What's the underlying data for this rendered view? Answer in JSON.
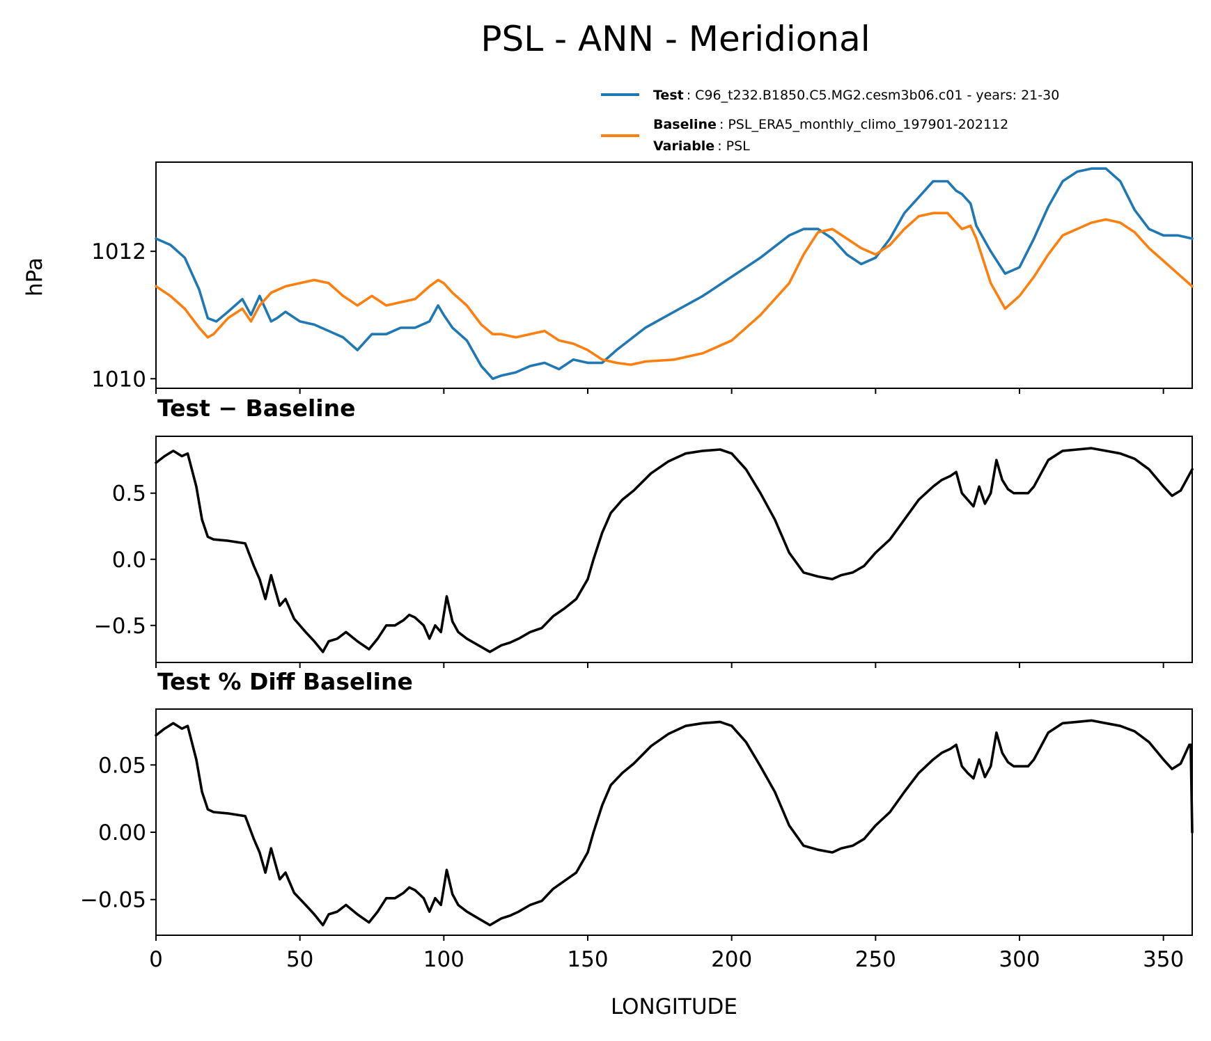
{
  "title": "PSL - ANN - Meridional",
  "legend": [
    {
      "key": "Test",
      "value": "C96_t232.B1850.C5.MG2.cesm3b06.c01 - years: 21-30",
      "color": "#1f77b4"
    },
    {
      "key": "Baseline",
      "value": "PSL_ERA5_monthly_climo_197901-202112",
      "key2": "Variable",
      "value2": "PSL",
      "color": "#ff7f0e"
    }
  ],
  "chart_data": [
    {
      "type": "line",
      "title": "",
      "xlabel": "",
      "ylabel": "hPa",
      "xlim": [
        0,
        360
      ],
      "ylim": [
        1009.85,
        1013.4
      ],
      "yticks": [
        "1010",
        "1012"
      ],
      "series": [
        {
          "name": "Test",
          "color": "#1f77b4",
          "x": [
            0,
            5,
            10,
            15,
            18,
            21,
            25,
            30,
            33,
            36,
            40,
            42,
            45,
            50,
            55,
            60,
            65,
            70,
            75,
            80,
            85,
            90,
            95,
            98,
            100,
            103,
            108,
            113,
            117,
            120,
            125,
            130,
            135,
            140,
            145,
            150,
            155,
            160,
            170,
            180,
            190,
            200,
            210,
            220,
            225,
            230,
            235,
            240,
            245,
            250,
            255,
            260,
            265,
            270,
            275,
            278,
            280,
            283,
            285,
            290,
            295,
            300,
            305,
            310,
            315,
            320,
            325,
            330,
            335,
            340,
            345,
            350,
            355,
            360
          ],
          "y": [
            1012.2,
            1012.1,
            1011.9,
            1011.4,
            1010.95,
            1010.9,
            1011.05,
            1011.25,
            1011.0,
            1011.3,
            1010.9,
            1010.95,
            1011.05,
            1010.9,
            1010.85,
            1010.75,
            1010.65,
            1010.45,
            1010.7,
            1010.7,
            1010.8,
            1010.8,
            1010.9,
            1011.15,
            1011.0,
            1010.8,
            1010.6,
            1010.2,
            1010.0,
            1010.05,
            1010.1,
            1010.2,
            1010.25,
            1010.15,
            1010.3,
            1010.25,
            1010.25,
            1010.45,
            1010.8,
            1011.05,
            1011.3,
            1011.6,
            1011.9,
            1012.25,
            1012.35,
            1012.35,
            1012.2,
            1011.95,
            1011.8,
            1011.9,
            1012.2,
            1012.6,
            1012.85,
            1013.1,
            1013.1,
            1012.95,
            1012.9,
            1012.75,
            1012.4,
            1012.0,
            1011.65,
            1011.75,
            1012.2,
            1012.7,
            1013.1,
            1013.25,
            1013.3,
            1013.3,
            1013.1,
            1012.65,
            1012.35,
            1012.25,
            1012.25,
            1012.2
          ]
        },
        {
          "name": "Baseline",
          "color": "#ff7f0e",
          "x": [
            0,
            5,
            10,
            15,
            18,
            20,
            25,
            30,
            33,
            36,
            40,
            45,
            50,
            55,
            60,
            65,
            70,
            75,
            80,
            85,
            90,
            95,
            98,
            100,
            103,
            108,
            113,
            117,
            120,
            125,
            130,
            135,
            140,
            145,
            150,
            155,
            160,
            165,
            170,
            180,
            190,
            200,
            210,
            220,
            225,
            230,
            235,
            240,
            245,
            250,
            255,
            260,
            265,
            270,
            275,
            278,
            280,
            283,
            285,
            290,
            295,
            300,
            305,
            310,
            315,
            320,
            325,
            330,
            335,
            340,
            345,
            350,
            355,
            360
          ],
          "y": [
            1011.45,
            1011.3,
            1011.1,
            1010.8,
            1010.65,
            1010.7,
            1010.95,
            1011.1,
            1010.9,
            1011.15,
            1011.35,
            1011.45,
            1011.5,
            1011.55,
            1011.5,
            1011.3,
            1011.15,
            1011.3,
            1011.15,
            1011.2,
            1011.25,
            1011.45,
            1011.55,
            1011.5,
            1011.35,
            1011.15,
            1010.85,
            1010.7,
            1010.7,
            1010.65,
            1010.7,
            1010.75,
            1010.6,
            1010.55,
            1010.45,
            1010.3,
            1010.25,
            1010.22,
            1010.27,
            1010.3,
            1010.4,
            1010.6,
            1011.0,
            1011.5,
            1011.95,
            1012.3,
            1012.35,
            1012.2,
            1012.05,
            1011.95,
            1012.1,
            1012.35,
            1012.55,
            1012.6,
            1012.6,
            1012.45,
            1012.35,
            1012.4,
            1012.2,
            1011.5,
            1011.1,
            1011.3,
            1011.6,
            1011.95,
            1012.25,
            1012.35,
            1012.45,
            1012.5,
            1012.45,
            1012.3,
            1012.05,
            1011.85,
            1011.65,
            1011.45
          ]
        }
      ]
    },
    {
      "type": "line",
      "title": "Test − Baseline",
      "xlabel": "",
      "ylabel": "",
      "xlim": [
        0,
        360
      ],
      "ylim": [
        -0.78,
        0.93
      ],
      "yticks": [
        "0.5",
        "0.0",
        "−0.5"
      ],
      "series": [
        {
          "name": "",
          "color": "#000000",
          "x": [
            0,
            3,
            6,
            9,
            11,
            14,
            16,
            18,
            20,
            25,
            28,
            31,
            34,
            36,
            38,
            40,
            43,
            45,
            48,
            52,
            55,
            58,
            60,
            63,
            66,
            70,
            74,
            77,
            80,
            83,
            86,
            88,
            90,
            93,
            95,
            97,
            99,
            101,
            103,
            105,
            108,
            112,
            116,
            120,
            123,
            126,
            130,
            134,
            138,
            142,
            146,
            150,
            152,
            155,
            158,
            162,
            166,
            172,
            178,
            184,
            190,
            196,
            200,
            205,
            210,
            215,
            220,
            225,
            230,
            235,
            238,
            242,
            246,
            250,
            255,
            260,
            265,
            270,
            273,
            276,
            278,
            280,
            282,
            284,
            286,
            288,
            290,
            292,
            294,
            296,
            298,
            300,
            303,
            305,
            310,
            315,
            320,
            325,
            330,
            335,
            340,
            345,
            350,
            353,
            356,
            360
          ],
          "y": [
            0.73,
            0.78,
            0.82,
            0.78,
            0.8,
            0.55,
            0.3,
            0.17,
            0.15,
            0.14,
            0.13,
            0.12,
            -0.05,
            -0.15,
            -0.3,
            -0.12,
            -0.35,
            -0.3,
            -0.45,
            -0.55,
            -0.62,
            -0.7,
            -0.62,
            -0.6,
            -0.55,
            -0.62,
            -0.68,
            -0.6,
            -0.5,
            -0.5,
            -0.46,
            -0.42,
            -0.44,
            -0.5,
            -0.6,
            -0.5,
            -0.55,
            -0.28,
            -0.47,
            -0.55,
            -0.6,
            -0.65,
            -0.7,
            -0.65,
            -0.63,
            -0.6,
            -0.55,
            -0.52,
            -0.43,
            -0.37,
            -0.3,
            -0.15,
            0.0,
            0.2,
            0.35,
            0.45,
            0.52,
            0.65,
            0.74,
            0.8,
            0.82,
            0.83,
            0.8,
            0.68,
            0.5,
            0.3,
            0.05,
            -0.1,
            -0.13,
            -0.15,
            -0.12,
            -0.1,
            -0.05,
            0.05,
            0.15,
            0.3,
            0.45,
            0.55,
            0.6,
            0.63,
            0.66,
            0.5,
            0.45,
            0.4,
            0.55,
            0.42,
            0.5,
            0.75,
            0.6,
            0.53,
            0.5,
            0.5,
            0.5,
            0.55,
            0.75,
            0.82,
            0.83,
            0.84,
            0.82,
            0.8,
            0.76,
            0.68,
            0.55,
            0.48,
            0.52,
            0.68
          ]
        }
      ]
    },
    {
      "type": "line",
      "title": "Test % Diff Baseline",
      "xlabel": "LONGITUDE",
      "ylabel": "",
      "xlim": [
        0,
        360
      ],
      "ylim": [
        -0.0765,
        0.0915
      ],
      "xticks": [
        "0",
        "50",
        "100",
        "150",
        "200",
        "250",
        "300",
        "350"
      ],
      "yticks": [
        "0.05",
        "0.00",
        "−0.05"
      ],
      "series": [
        {
          "name": "",
          "color": "#000000",
          "x": [
            0,
            3,
            6,
            9,
            11,
            14,
            16,
            18,
            20,
            25,
            28,
            31,
            34,
            36,
            38,
            40,
            43,
            45,
            48,
            52,
            55,
            58,
            60,
            63,
            66,
            70,
            74,
            77,
            80,
            83,
            86,
            88,
            90,
            93,
            95,
            97,
            99,
            101,
            103,
            105,
            108,
            112,
            116,
            120,
            123,
            126,
            130,
            134,
            138,
            142,
            146,
            150,
            152,
            155,
            158,
            162,
            166,
            172,
            178,
            184,
            190,
            196,
            200,
            205,
            210,
            215,
            220,
            225,
            230,
            235,
            238,
            242,
            246,
            250,
            255,
            260,
            265,
            270,
            273,
            276,
            278,
            280,
            282,
            284,
            286,
            288,
            290,
            292,
            294,
            296,
            298,
            300,
            303,
            305,
            310,
            315,
            320,
            325,
            330,
            335,
            340,
            345,
            350,
            353,
            356,
            359,
            359.5,
            360
          ],
          "y": [
            0.072,
            0.077,
            0.081,
            0.077,
            0.079,
            0.054,
            0.03,
            0.017,
            0.015,
            0.014,
            0.013,
            0.012,
            -0.005,
            -0.015,
            -0.03,
            -0.012,
            -0.035,
            -0.03,
            -0.045,
            -0.054,
            -0.061,
            -0.069,
            -0.061,
            -0.059,
            -0.054,
            -0.061,
            -0.067,
            -0.059,
            -0.049,
            -0.049,
            -0.045,
            -0.041,
            -0.043,
            -0.049,
            -0.059,
            -0.049,
            -0.054,
            -0.028,
            -0.046,
            -0.054,
            -0.059,
            -0.064,
            -0.069,
            -0.064,
            -0.062,
            -0.059,
            -0.054,
            -0.051,
            -0.042,
            -0.036,
            -0.03,
            -0.015,
            0.0,
            0.02,
            0.035,
            0.044,
            0.051,
            0.064,
            0.073,
            0.079,
            0.081,
            0.082,
            0.079,
            0.067,
            0.049,
            0.03,
            0.005,
            -0.01,
            -0.013,
            -0.015,
            -0.012,
            -0.01,
            -0.005,
            0.005,
            0.015,
            0.03,
            0.044,
            0.054,
            0.059,
            0.062,
            0.065,
            0.049,
            0.044,
            0.04,
            0.054,
            0.041,
            0.049,
            0.074,
            0.059,
            0.052,
            0.049,
            0.049,
            0.049,
            0.054,
            0.074,
            0.081,
            0.082,
            0.083,
            0.081,
            0.079,
            0.075,
            0.067,
            0.054,
            0.047,
            0.051,
            0.065,
            0.065,
            0.0
          ]
        }
      ]
    }
  ]
}
